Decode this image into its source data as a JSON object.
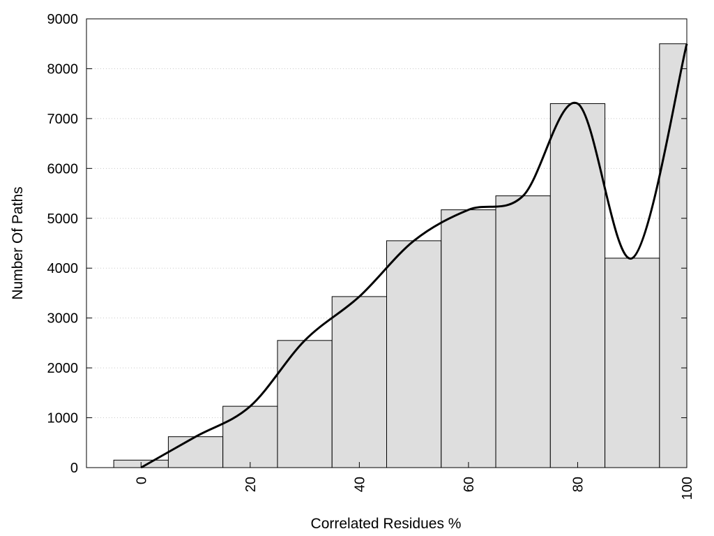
{
  "chart_data": {
    "type": "bar",
    "title": "",
    "xlabel": "Correlated Residues %",
    "ylabel": "Number Of Paths",
    "xlim": [
      -10,
      100
    ],
    "ylim": [
      0,
      9000
    ],
    "x_ticks": [
      0,
      20,
      40,
      60,
      80,
      100
    ],
    "y_ticks": [
      0,
      1000,
      2000,
      3000,
      4000,
      5000,
      6000,
      7000,
      8000,
      9000
    ],
    "grid": "horizontal dotted",
    "bar_width": 10,
    "x": [
      0,
      10,
      20,
      30,
      40,
      50,
      60,
      70,
      80,
      90,
      100
    ],
    "values": [
      150,
      620,
      1230,
      2550,
      3430,
      4550,
      5170,
      5450,
      7300,
      4200,
      8500
    ],
    "smooth_line": {
      "x": [
        0,
        10,
        20,
        30,
        40,
        50,
        60,
        70,
        80,
        90,
        100
      ],
      "y": [
        0,
        620,
        1230,
        2550,
        3430,
        4550,
        5170,
        5450,
        7300,
        4200,
        8500
      ]
    },
    "colors": {
      "bar_fill": "#dedede",
      "bar_stroke": "#000000",
      "line": "#000000",
      "grid": "#c8c8c8"
    }
  }
}
